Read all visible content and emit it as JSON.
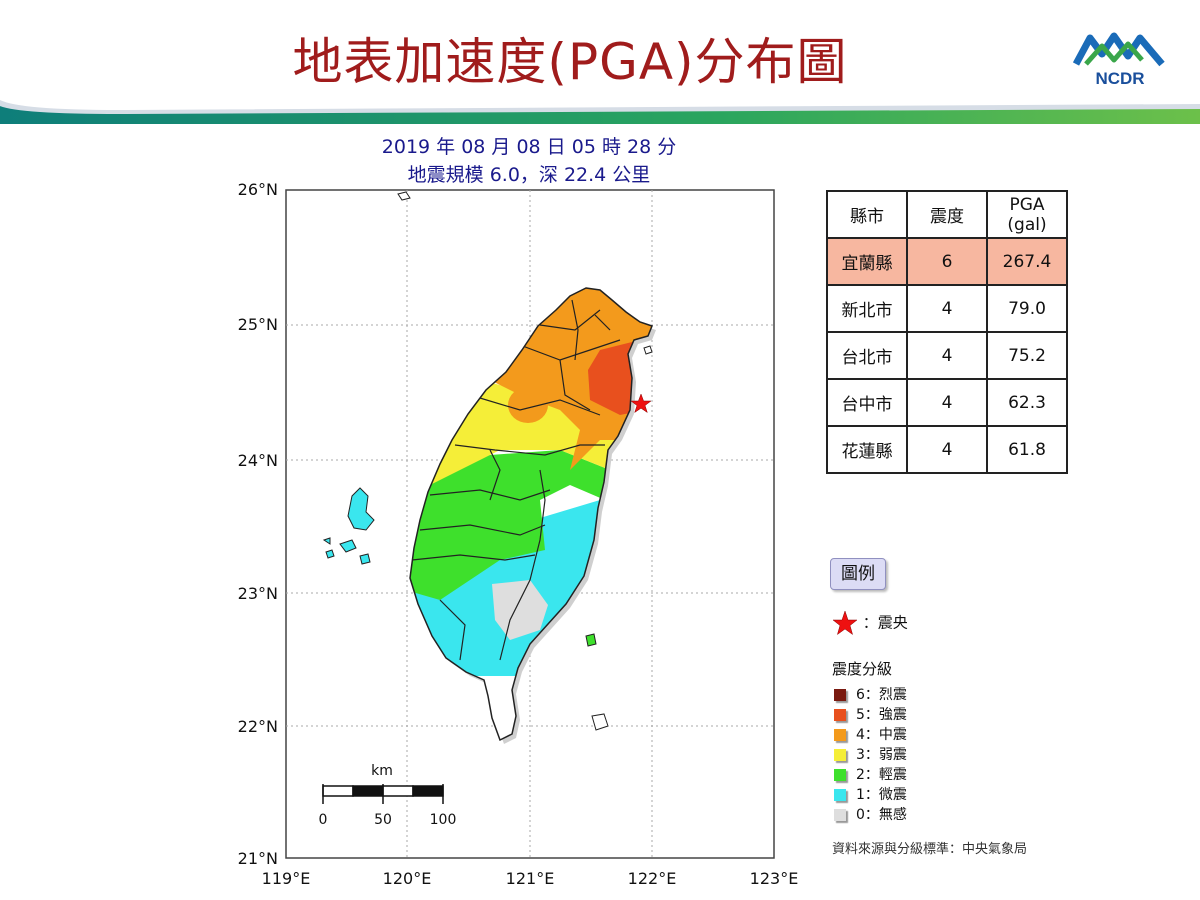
{
  "title": "地表加速度(PGA)分布圖",
  "logo_text": "NCDR",
  "subtitle_line1": "2019 年 08 月 08 日 05 時 28 分",
  "subtitle_line2": "地震規模 6.0，深 22.4 公里",
  "map": {
    "lat_labels": [
      "26°N",
      "25°N",
      "24°N",
      "23°N",
      "22°N",
      "21°N"
    ],
    "lon_labels": [
      "119°E",
      "120°E",
      "121°E",
      "122°E",
      "123°E"
    ],
    "scale_bar": {
      "unit": "km",
      "ticks": [
        "0",
        "50",
        "100"
      ]
    },
    "epicenter_icon": "red-star-icon"
  },
  "table": {
    "headers": [
      "縣市",
      "震度",
      "PGA\n(gal)"
    ],
    "header_line1": "PGA",
    "header_line2": "(gal)",
    "rows": [
      {
        "county": "宜蘭縣",
        "intensity": "6",
        "pga": "267.4"
      },
      {
        "county": "新北市",
        "intensity": "4",
        "pga": "79.0"
      },
      {
        "county": "台北市",
        "intensity": "4",
        "pga": "75.2"
      },
      {
        "county": "台中市",
        "intensity": "4",
        "pga": "62.3"
      },
      {
        "county": "花蓮縣",
        "intensity": "4",
        "pga": "61.8"
      }
    ],
    "highlight_color": "#f7b7a0"
  },
  "legend": {
    "button_label": "圖例",
    "epicenter_label": "：震央",
    "scale_title": "震度分級",
    "items": [
      {
        "label": "6：烈震",
        "color": "#7a1a10"
      },
      {
        "label": "5：強震",
        "color": "#e8501e"
      },
      {
        "label": "4：中震",
        "color": "#f39a1c"
      },
      {
        "label": "3：弱震",
        "color": "#f5ee38"
      },
      {
        "label": "2：輕震",
        "color": "#3ee02c"
      },
      {
        "label": "1：微震",
        "color": "#3ae6ee"
      },
      {
        "label": "0：無感",
        "color": "#dedede"
      }
    ]
  },
  "source": "資料來源與分級標準：中央氣象局"
}
